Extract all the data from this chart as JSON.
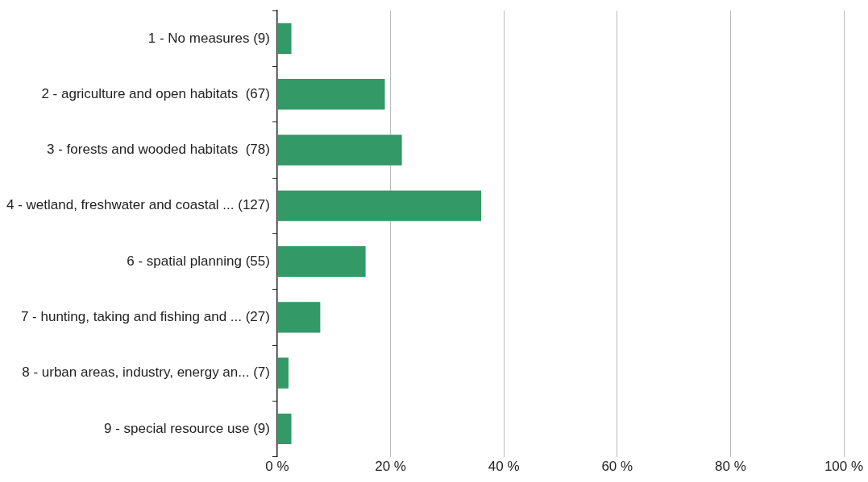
{
  "chart_data": {
    "type": "bar",
    "orientation": "horizontal",
    "categories": [
      "1 - No measures (9)",
      "2 - agriculture and open habitats  (67)",
      "3 - forests and wooded habitats  (78)",
      "4 - wetland, freshwater and coastal ... (127)",
      "6 - spatial planning (55)",
      "7 - hunting, taking and fishing and ... (27)",
      "8 - urban areas, industry, energy an... (7)",
      "9 - special resource use (9)"
    ],
    "values": [
      2.5,
      19,
      22,
      36,
      15.6,
      7.6,
      2,
      2.5
    ],
    "color": "#339966",
    "xlim": [
      0,
      100
    ],
    "xticks": [
      {
        "value": 0,
        "label": "0 %"
      },
      {
        "value": 20,
        "label": "20 %"
      },
      {
        "value": 40,
        "label": "40 %"
      },
      {
        "value": 60,
        "label": "60 %"
      },
      {
        "value": 80,
        "label": "80 %"
      },
      {
        "value": 100,
        "label": "100 %"
      }
    ],
    "grid": "x",
    "legend": false
  }
}
